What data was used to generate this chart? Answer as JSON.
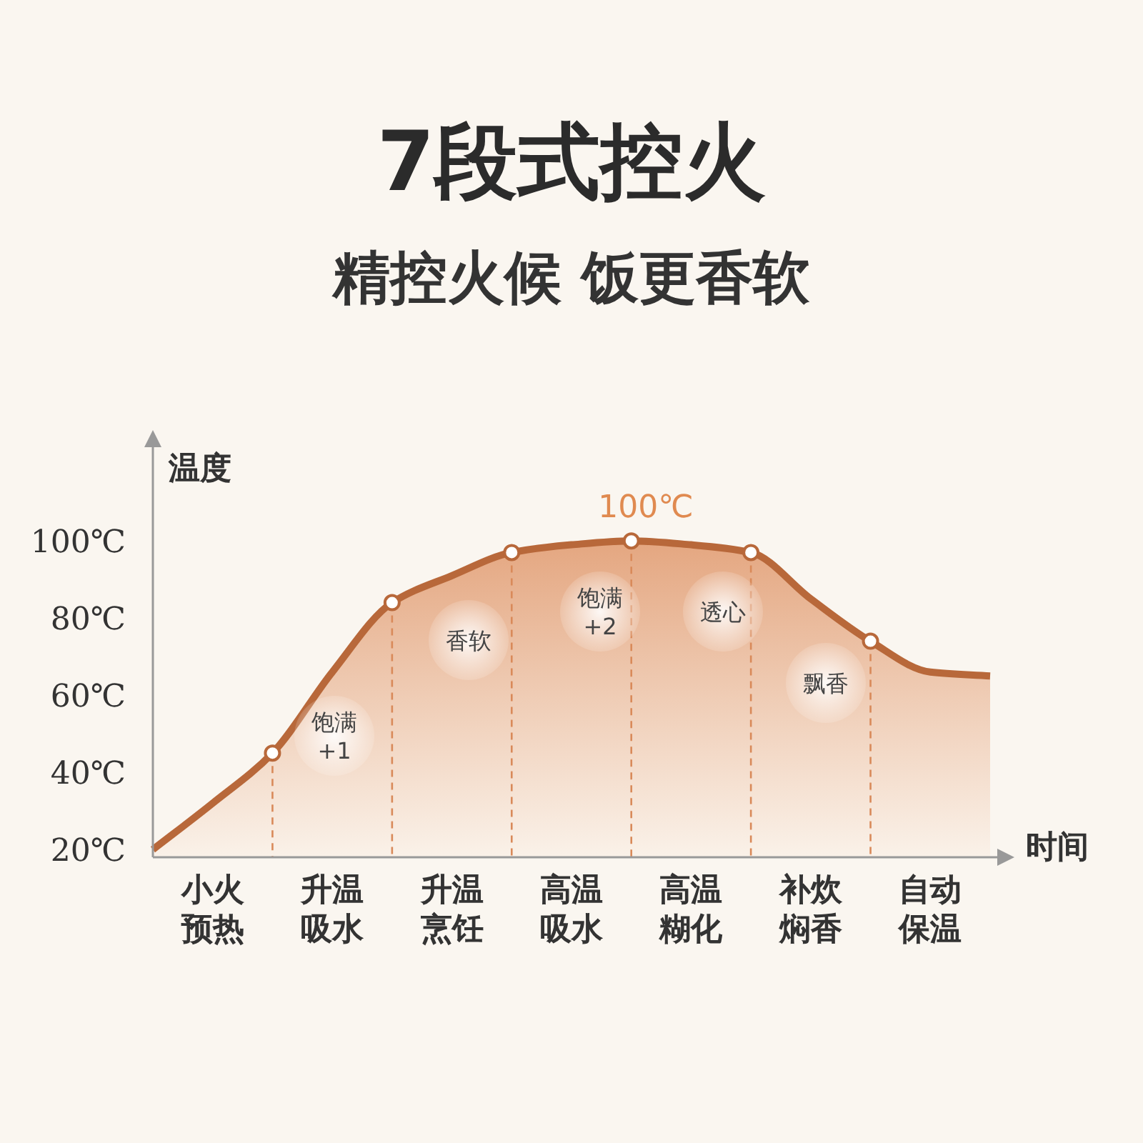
{
  "chart_data": {
    "type": "area",
    "title": "7段式控火",
    "subtitle": "精控火候 饭更香软",
    "ylabel": "温度",
    "xlabel": "时间",
    "categories": [
      null,
      "小火预热",
      null,
      "升温吸水",
      null,
      "升温烹饪",
      null,
      "高温吸水",
      null,
      "高温糊化",
      null,
      "补炊焖香",
      null,
      "自动保温",
      null
    ],
    "ylim": [
      18,
      128
    ],
    "yticks": [
      {
        "value": 20,
        "label": "20℃"
      },
      {
        "value": 40,
        "label": "40℃"
      },
      {
        "value": 60,
        "label": "60℃"
      },
      {
        "value": 80,
        "label": "80℃"
      },
      {
        "value": 100,
        "label": "100℃"
      }
    ],
    "series": [
      {
        "color": "#b8683a",
        "values": [
          20,
          32,
          45,
          66,
          84,
          91,
          97,
          99,
          100,
          99,
          97,
          85,
          74,
          66,
          65
        ]
      },
      {
        "type": "scatter",
        "color": "#b8683a",
        "marker": "circle",
        "values": [
          null,
          null,
          45,
          null,
          84,
          null,
          97,
          null,
          100,
          null,
          97,
          null,
          74,
          null,
          null
        ]
      }
    ],
    "annotations": [
      "100℃",
      "饱满+1",
      "香软",
      "饱满+2",
      "透心",
      "飘香"
    ],
    "grid": "x"
  }
}
